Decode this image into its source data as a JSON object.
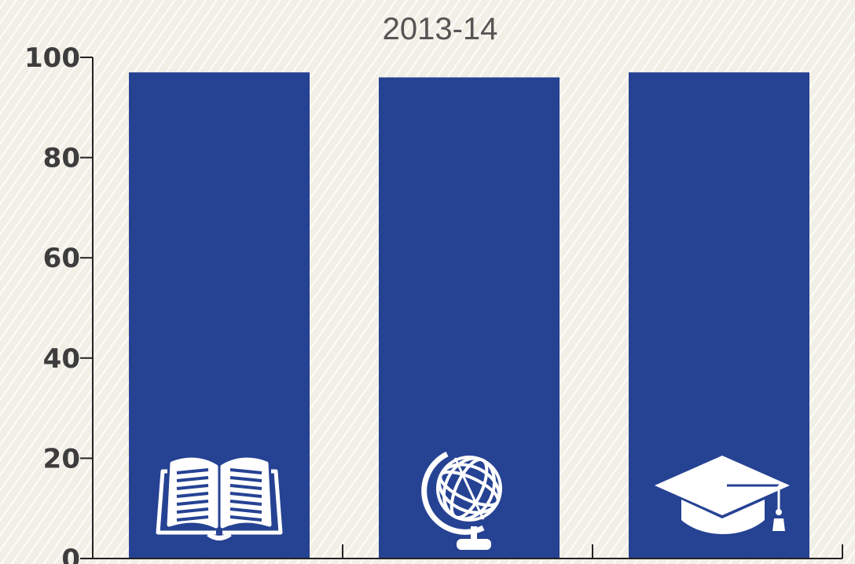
{
  "chart_data": {
    "type": "bar",
    "title": "2013-14",
    "categories": [
      "",
      "",
      ""
    ],
    "category_icons": [
      "open-book-icon",
      "globe-icon",
      "graduation-cap-icon"
    ],
    "values": [
      97,
      96,
      97
    ],
    "ylim": [
      0,
      100
    ],
    "yticks": [
      0,
      20,
      40,
      60,
      80,
      100
    ],
    "xlabel": "",
    "ylabel": "",
    "grid": false,
    "colors": {
      "bar": "#264293",
      "icon": "#ffffff",
      "axis": "#222222",
      "tick_text": "#3d3d3d",
      "title": "#555555"
    }
  }
}
